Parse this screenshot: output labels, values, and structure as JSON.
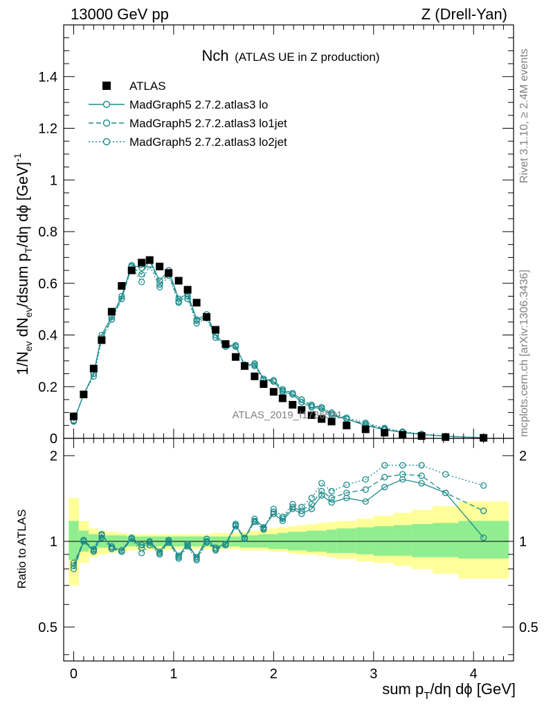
{
  "header": {
    "left": "13000 GeV pp",
    "right": "Z (Drell-Yan)"
  },
  "side_labels": {
    "rivet": "Rivet 3.1.10, ≥ 2.4M events",
    "mcplots": "mcplots.cern.ch [arXiv:1306.3436]"
  },
  "watermark": "ATLAS_2019_I1736531",
  "colors": {
    "mc": "#1a8a8a",
    "band_inner": "#90ee90",
    "band_outer": "#ffff99",
    "data": "#000000"
  },
  "chart_data": [
    {
      "type": "scatter",
      "title_main": "Nch",
      "title_sub": "(ATLAS UE in Z production)",
      "xlabel": "sum p_T/dη dϕ [GeV]",
      "ylabel": "1/N_ev dN_ev/dsum p_T/dη dϕ  [GeV]^-1",
      "xlim": [
        -0.1,
        4.4
      ],
      "ylim": [
        0,
        1.6
      ],
      "xticks": [
        0,
        1,
        2,
        3,
        4
      ],
      "yticks": [
        0,
        0.2,
        0.4,
        0.6,
        0.8,
        1,
        1.2,
        1.4
      ],
      "legend_position": "top-left",
      "x": [
        0.0,
        0.1,
        0.2,
        0.28,
        0.38,
        0.48,
        0.58,
        0.68,
        0.76,
        0.86,
        0.95,
        1.05,
        1.14,
        1.23,
        1.33,
        1.42,
        1.52,
        1.62,
        1.71,
        1.81,
        1.9,
        2.0,
        2.09,
        2.19,
        2.28,
        2.38,
        2.48,
        2.58,
        2.73,
        2.92,
        3.11,
        3.29,
        3.48,
        3.72,
        4.1
      ],
      "series": [
        {
          "name": "ATLAS",
          "style": "data",
          "values": [
            0.085,
            0.17,
            0.27,
            0.38,
            0.49,
            0.59,
            0.65,
            0.68,
            0.69,
            0.665,
            0.64,
            0.61,
            0.575,
            0.525,
            0.47,
            0.42,
            0.365,
            0.315,
            0.28,
            0.24,
            0.21,
            0.18,
            0.155,
            0.13,
            0.11,
            0.09,
            0.075,
            0.065,
            0.05,
            0.035,
            0.022,
            0.014,
            0.009,
            0.005,
            0.002
          ]
        },
        {
          "name": "MadGraph5 2.7.2.atlas3 lo",
          "style": "solid",
          "values": [
            0.065,
            0.17,
            0.25,
            0.4,
            0.47,
            0.55,
            0.67,
            0.66,
            0.69,
            0.61,
            0.65,
            0.54,
            0.56,
            0.46,
            0.48,
            0.4,
            0.36,
            0.36,
            0.28,
            0.29,
            0.23,
            0.22,
            0.18,
            0.17,
            0.14,
            0.12,
            0.115,
            0.09,
            0.075,
            0.05,
            0.033,
            0.023,
            0.015,
            0.008,
            0.002
          ]
        },
        {
          "name": "MadGraph5 2.7.2.atlas3 lo1jet",
          "style": "dashed",
          "values": [
            0.07,
            0.17,
            0.25,
            0.39,
            0.46,
            0.54,
            0.665,
            0.635,
            0.69,
            0.595,
            0.64,
            0.53,
            0.55,
            0.455,
            0.47,
            0.39,
            0.355,
            0.355,
            0.285,
            0.285,
            0.23,
            0.225,
            0.19,
            0.175,
            0.15,
            0.125,
            0.12,
            0.095,
            0.075,
            0.055,
            0.036,
            0.024,
            0.016,
            0.008,
            0.0026
          ]
        },
        {
          "name": "MadGraph5 2.7.2.atlas3 lo2jet",
          "style": "dotted",
          "values": [
            0.068,
            0.17,
            0.24,
            0.38,
            0.46,
            0.54,
            0.665,
            0.605,
            0.67,
            0.585,
            0.63,
            0.525,
            0.54,
            0.445,
            0.465,
            0.39,
            0.355,
            0.355,
            0.285,
            0.28,
            0.225,
            0.22,
            0.185,
            0.175,
            0.15,
            0.13,
            0.12,
            0.1,
            0.08,
            0.06,
            0.04,
            0.026,
            0.017,
            0.0085,
            0.003
          ]
        }
      ]
    },
    {
      "type": "line",
      "ylabel": "Ratio to ATLAS",
      "ylim": [
        0.38,
        2.3
      ],
      "log_y": true,
      "yticks": [
        0.5,
        1,
        2
      ],
      "xlim": [
        -0.1,
        4.4
      ],
      "xticks": [
        0,
        1,
        2,
        3,
        4
      ],
      "reference_line": 1,
      "band_edges": [
        -0.05,
        0.05,
        0.15,
        0.24,
        0.33,
        0.43,
        0.53,
        0.63,
        0.72,
        0.81,
        0.9,
        1.0,
        1.09,
        1.18,
        1.28,
        1.37,
        1.47,
        1.57,
        1.66,
        1.76,
        1.85,
        1.95,
        2.04,
        2.14,
        2.23,
        2.33,
        2.43,
        2.53,
        2.63,
        2.83,
        3.0,
        3.2,
        3.38,
        3.59,
        3.85,
        4.35
      ],
      "band_inner_low": [
        0.86,
        0.92,
        0.94,
        0.95,
        0.95,
        0.95,
        0.96,
        0.96,
        0.96,
        0.96,
        0.96,
        0.96,
        0.96,
        0.96,
        0.96,
        0.96,
        0.96,
        0.96,
        0.95,
        0.95,
        0.95,
        0.94,
        0.94,
        0.93,
        0.93,
        0.92,
        0.92,
        0.91,
        0.91,
        0.9,
        0.89,
        0.89,
        0.88,
        0.88,
        0.87
      ],
      "band_inner_high": [
        1.18,
        1.09,
        1.06,
        1.05,
        1.05,
        1.05,
        1.04,
        1.04,
        1.04,
        1.04,
        1.04,
        1.04,
        1.04,
        1.04,
        1.04,
        1.04,
        1.04,
        1.04,
        1.05,
        1.05,
        1.06,
        1.06,
        1.07,
        1.08,
        1.08,
        1.09,
        1.09,
        1.1,
        1.11,
        1.12,
        1.13,
        1.14,
        1.15,
        1.16,
        1.18
      ],
      "band_outer_low": [
        0.7,
        0.84,
        0.88,
        0.9,
        0.91,
        0.92,
        0.93,
        0.93,
        0.93,
        0.93,
        0.93,
        0.94,
        0.94,
        0.94,
        0.94,
        0.93,
        0.94,
        0.94,
        0.93,
        0.93,
        0.93,
        0.92,
        0.92,
        0.91,
        0.9,
        0.9,
        0.89,
        0.88,
        0.87,
        0.85,
        0.84,
        0.82,
        0.8,
        0.77,
        0.74
      ],
      "band_outer_high": [
        1.42,
        1.18,
        1.11,
        1.09,
        1.08,
        1.07,
        1.06,
        1.06,
        1.06,
        1.06,
        1.06,
        1.06,
        1.06,
        1.06,
        1.06,
        1.07,
        1.07,
        1.07,
        1.08,
        1.09,
        1.1,
        1.11,
        1.12,
        1.13,
        1.14,
        1.15,
        1.16,
        1.17,
        1.18,
        1.2,
        1.23,
        1.26,
        1.29,
        1.33,
        1.38
      ],
      "series": [
        {
          "name": "MadGraph5 2.7.2.atlas3 lo",
          "style": "solid",
          "values": [
            0.8,
            1.0,
            0.93,
            1.05,
            0.96,
            0.93,
            1.03,
            0.97,
            1.0,
            0.92,
            1.01,
            0.89,
            0.98,
            0.88,
            1.02,
            0.95,
            0.98,
            1.14,
            1.02,
            1.2,
            1.12,
            1.25,
            1.18,
            1.3,
            1.25,
            1.3,
            1.45,
            1.37,
            1.42,
            1.38,
            1.55,
            1.65,
            1.6,
            1.48,
            1.03
          ]
        },
        {
          "name": "MadGraph5 2.7.2.atlas3 lo1jet",
          "style": "dashed",
          "values": [
            0.82,
            1.01,
            0.94,
            1.06,
            0.95,
            0.92,
            1.02,
            0.95,
            0.99,
            0.91,
            1.0,
            0.88,
            0.97,
            0.87,
            1.0,
            0.94,
            0.97,
            1.13,
            1.02,
            1.18,
            1.11,
            1.27,
            1.2,
            1.32,
            1.28,
            1.35,
            1.5,
            1.42,
            1.48,
            1.52,
            1.68,
            1.72,
            1.7,
            1.48,
            1.28
          ]
        },
        {
          "name": "MadGraph5 2.7.2.atlas3 lo2jet",
          "style": "dotted",
          "values": [
            0.84,
            1.0,
            0.92,
            1.03,
            0.94,
            0.92,
            1.02,
            0.91,
            0.97,
            0.9,
            0.99,
            0.87,
            0.96,
            0.86,
            0.99,
            0.93,
            0.97,
            1.15,
            1.03,
            1.17,
            1.1,
            1.3,
            1.22,
            1.35,
            1.32,
            1.42,
            1.6,
            1.5,
            1.58,
            1.65,
            1.85,
            1.85,
            1.85,
            1.72,
            1.57
          ]
        }
      ]
    }
  ]
}
